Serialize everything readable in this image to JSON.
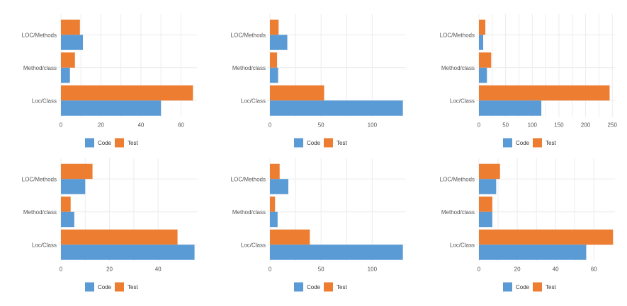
{
  "colors": {
    "code": "#5b9bd5",
    "test": "#ed7d31",
    "grid": "#ececec"
  },
  "chart_data": [
    {
      "type": "bar",
      "orientation": "horizontal",
      "categories": [
        "LOC/Methods",
        "Method/class",
        "Loc/Class"
      ],
      "series": [
        {
          "name": "Code",
          "values": [
            11,
            4.5,
            50
          ]
        },
        {
          "name": "Test",
          "values": [
            9.5,
            7,
            66
          ]
        }
      ],
      "xlim": [
        0,
        68
      ],
      "xticks": [
        0,
        20,
        40,
        60
      ],
      "grid": true,
      "legend": "bottom"
    },
    {
      "type": "bar",
      "orientation": "horizontal",
      "categories": [
        "LOC/Methods",
        "Method/class",
        "Loc/Class"
      ],
      "series": [
        {
          "name": "Code",
          "values": [
            17,
            8,
            130
          ]
        },
        {
          "name": "Test",
          "values": [
            8.5,
            7,
            53
          ]
        }
      ],
      "xlim": [
        0,
        133
      ],
      "xticks": [
        0,
        50,
        100
      ],
      "grid": true,
      "legend": "bottom"
    },
    {
      "type": "bar",
      "orientation": "horizontal",
      "categories": [
        "LOC/Methods",
        "Method/class",
        "Loc/Class"
      ],
      "series": [
        {
          "name": "Code",
          "values": [
            8,
            15,
            117
          ]
        },
        {
          "name": "Test",
          "values": [
            12,
            23,
            245
          ]
        }
      ],
      "xlim": [
        0,
        255
      ],
      "xticks": [
        0,
        50,
        100,
        150,
        200,
        250
      ],
      "grid": true,
      "legend": "bottom"
    },
    {
      "type": "bar",
      "orientation": "horizontal",
      "categories": [
        "LOC/Methods",
        "Method/class",
        "Loc/Class"
      ],
      "series": [
        {
          "name": "Code",
          "values": [
            10,
            5.5,
            55
          ]
        },
        {
          "name": "Test",
          "values": [
            13,
            4,
            48
          ]
        }
      ],
      "xlim": [
        0,
        56
      ],
      "xticks": [
        0,
        20,
        40
      ],
      "grid": true,
      "legend": "bottom"
    },
    {
      "type": "bar",
      "orientation": "horizontal",
      "categories": [
        "LOC/Methods",
        "Method/class",
        "Loc/Class"
      ],
      "series": [
        {
          "name": "Code",
          "values": [
            18,
            7.5,
            130
          ]
        },
        {
          "name": "Test",
          "values": [
            9.5,
            5,
            39
          ]
        }
      ],
      "xlim": [
        0,
        133
      ],
      "xticks": [
        0,
        50,
        100
      ],
      "grid": true,
      "legend": "bottom"
    },
    {
      "type": "bar",
      "orientation": "horizontal",
      "categories": [
        "LOC/Methods",
        "Method/class",
        "Loc/Class"
      ],
      "series": [
        {
          "name": "Code",
          "values": [
            9,
            7,
            56
          ]
        },
        {
          "name": "Test",
          "values": [
            11,
            7,
            70
          ]
        }
      ],
      "xlim": [
        0,
        71
      ],
      "xticks": [
        0,
        20,
        40,
        60
      ],
      "grid": true,
      "legend": "bottom"
    }
  ]
}
